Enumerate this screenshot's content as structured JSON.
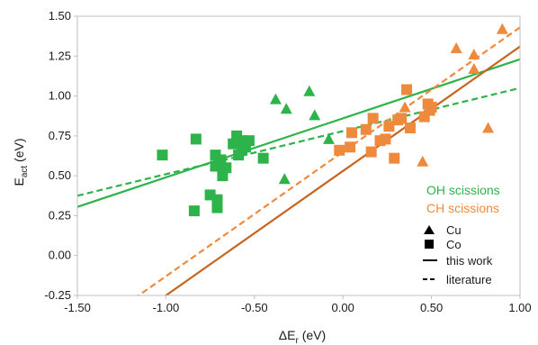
{
  "chart_data": {
    "type": "scatter",
    "xlabel_prefix": "ΔE",
    "xlabel_sub": "r",
    "xlabel_suffix": " (eV)",
    "ylabel_prefix": "E",
    "ylabel_sub": "act",
    "ylabel_suffix": " (eV)",
    "xlim": [
      -1.5,
      1.0
    ],
    "ylim": [
      -0.25,
      1.5
    ],
    "x_ticks": [
      -1.5,
      -1.0,
      -0.5,
      0.0,
      0.5,
      1.0
    ],
    "y_ticks": [
      -0.25,
      0.0,
      0.25,
      0.5,
      0.75,
      1.0,
      1.25,
      1.5
    ],
    "x_tick_labels": [
      "-1.50",
      "-1.00",
      "-0.50",
      "0.00",
      "0.50",
      "1.00"
    ],
    "y_tick_labels": [
      "-0.25",
      "0.00",
      "0.25",
      "0.50",
      "0.75",
      "1.00",
      "1.25",
      "1.50"
    ],
    "grid": false,
    "colors": {
      "oh": "#2db34a",
      "ch": "#ed8a3d",
      "ch_line": "#c8641e"
    },
    "series": [
      {
        "name": "OH scissions",
        "color_key": "oh",
        "cu": [
          [
            -0.38,
            0.98
          ],
          [
            -0.32,
            0.92
          ],
          [
            -0.19,
            1.03
          ],
          [
            -0.16,
            0.88
          ],
          [
            -0.08,
            0.73
          ],
          [
            -0.33,
            0.48
          ]
        ],
        "co": [
          [
            -1.02,
            0.63
          ],
          [
            -0.83,
            0.73
          ],
          [
            -0.84,
            0.28
          ],
          [
            -0.75,
            0.38
          ],
          [
            -0.72,
            0.63
          ],
          [
            -0.72,
            0.56
          ],
          [
            -0.71,
            0.3
          ],
          [
            -0.71,
            0.35
          ],
          [
            -0.69,
            0.6
          ],
          [
            -0.68,
            0.5
          ],
          [
            -0.66,
            0.55
          ],
          [
            -0.62,
            0.7
          ],
          [
            -0.6,
            0.75
          ],
          [
            -0.59,
            0.63
          ],
          [
            -0.57,
            0.72
          ],
          [
            -0.57,
            0.66
          ],
          [
            -0.55,
            0.68
          ],
          [
            -0.53,
            0.72
          ],
          [
            -0.45,
            0.61
          ]
        ],
        "this_work": {
          "intercept": 0.86,
          "slope": 0.37
        },
        "literature": {
          "intercept": 0.78,
          "slope": 0.27
        }
      },
      {
        "name": "CH scissions",
        "color_key": "ch",
        "cu": [
          [
            0.35,
            0.93
          ],
          [
            0.45,
            0.59
          ],
          [
            0.64,
            1.3
          ],
          [
            0.74,
            1.26
          ],
          [
            0.74,
            1.17
          ],
          [
            0.82,
            0.8
          ],
          [
            0.9,
            1.42
          ]
        ],
        "co": [
          [
            -0.02,
            0.66
          ],
          [
            0.04,
            0.68
          ],
          [
            0.05,
            0.77
          ],
          [
            0.13,
            0.79
          ],
          [
            0.16,
            0.65
          ],
          [
            0.17,
            0.86
          ],
          [
            0.21,
            0.72
          ],
          [
            0.24,
            0.73
          ],
          [
            0.26,
            0.81
          ],
          [
            0.29,
            0.61
          ],
          [
            0.31,
            0.85
          ],
          [
            0.33,
            0.86
          ],
          [
            0.36,
            1.04
          ],
          [
            0.38,
            0.8
          ],
          [
            0.46,
            0.87
          ],
          [
            0.49,
            0.91
          ],
          [
            0.5,
            0.93
          ],
          [
            0.48,
            0.95
          ]
        ],
        "this_work": {
          "intercept": 0.53,
          "slope": 0.78
        },
        "literature": {
          "intercept": 0.65,
          "slope": 0.78
        }
      }
    ],
    "legend": {
      "placement": "bottom-right",
      "group_labels": [
        "OH scissions",
        "CH scissions"
      ],
      "marker_items": [
        {
          "label": "Cu",
          "icon": "triangle-icon"
        },
        {
          "label": "Co",
          "icon": "square-icon"
        }
      ],
      "line_items": [
        {
          "label": "this work",
          "style": "solid"
        },
        {
          "label": "literature",
          "style": "dashed"
        }
      ]
    }
  }
}
